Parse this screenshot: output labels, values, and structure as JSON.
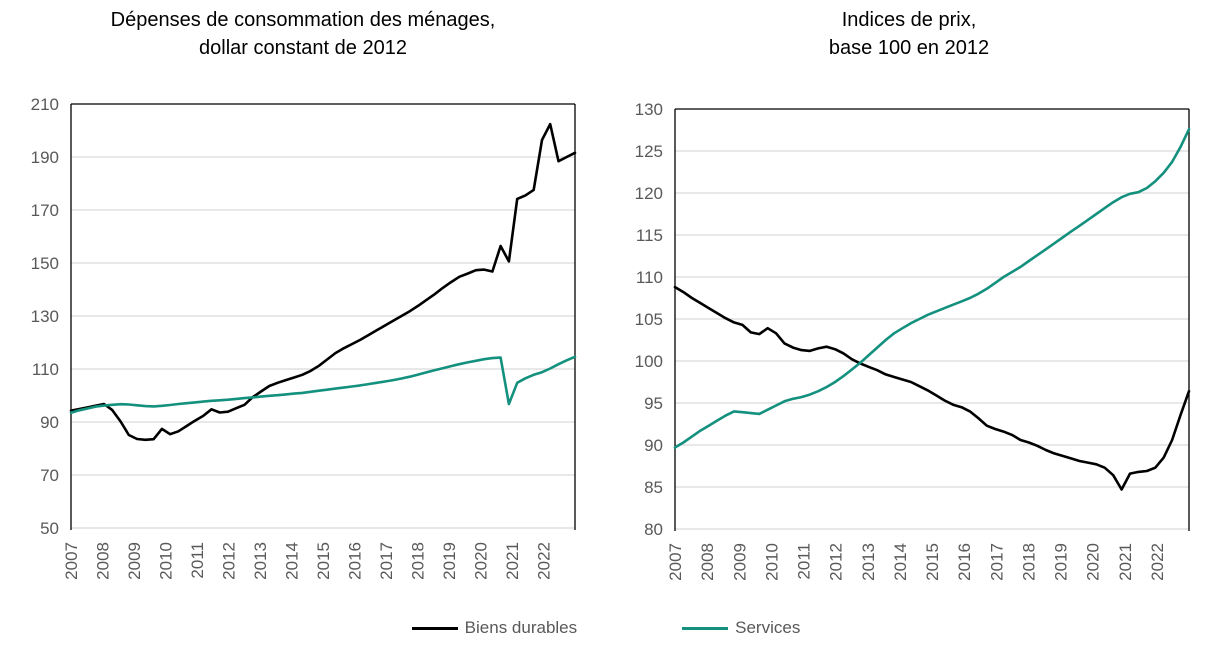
{
  "style": {
    "background": "#ffffff",
    "grid_color": "#d9d9d9",
    "border_color": "#000000",
    "axis_text_color": "#595959",
    "title_color": "#000000",
    "durables_color": "#000000",
    "services_color": "#14917e"
  },
  "legend": {
    "position": "bottom-center",
    "items": [
      {
        "label": "Biens durables",
        "color": "#000000"
      },
      {
        "label": "Services",
        "color": "#14917e"
      }
    ]
  },
  "chart_data": [
    {
      "type": "line",
      "title_lines": [
        "Dépenses de consommation des ménages,",
        "dollar constant de 2012"
      ],
      "x_tick_labels": [
        "2007",
        "2008",
        "2009",
        "2010",
        "2011",
        "2012",
        "2013",
        "2014",
        "2015",
        "2016",
        "2017",
        "2018",
        "2019",
        "2020",
        "2021",
        "2022"
      ],
      "x_frequency": "quarterly",
      "ylim": [
        50,
        210
      ],
      "y_tick_step": 20,
      "grid": true,
      "series": [
        {
          "name": "Biens durables",
          "color": "#000000",
          "values": [
            94.3,
            94.9,
            95.5,
            96.2,
            96.8,
            94.5,
            90.2,
            85.1,
            83.6,
            83.3,
            83.5,
            87.4,
            85.4,
            86.5,
            88.5,
            90.5,
            92.3,
            94.8,
            93.6,
            93.9,
            95.2,
            96.5,
            99.4,
            101.5,
            103.6,
            104.8,
            105.8,
            106.8,
            107.8,
            109.3,
            111.2,
            113.6,
            116.0,
            117.8,
            119.4,
            121.0,
            122.8,
            124.6,
            126.4,
            128.2,
            130.0,
            131.8,
            133.8,
            136.0,
            138.2,
            140.6,
            142.8,
            144.8,
            146.0,
            147.3,
            147.5,
            146.8,
            156.4,
            150.6,
            174.2,
            175.5,
            177.6,
            196.4,
            202.4,
            188.4,
            190.0,
            191.6
          ]
        },
        {
          "name": "Services",
          "color": "#14917e",
          "values": [
            93.5,
            94.4,
            95.1,
            95.8,
            96.2,
            96.5,
            96.7,
            96.6,
            96.3,
            96.0,
            95.9,
            96.1,
            96.4,
            96.8,
            97.1,
            97.4,
            97.7,
            98.0,
            98.2,
            98.4,
            98.7,
            99.0,
            99.3,
            99.6,
            99.9,
            100.1,
            100.4,
            100.7,
            101.0,
            101.4,
            101.8,
            102.2,
            102.6,
            103.0,
            103.4,
            103.8,
            104.3,
            104.8,
            105.3,
            105.8,
            106.4,
            107.1,
            107.9,
            108.7,
            109.5,
            110.3,
            111.1,
            111.8,
            112.5,
            113.1,
            113.7,
            114.1,
            114.3,
            96.8,
            104.8,
            106.5,
            107.8,
            108.8,
            110.2,
            111.8,
            113.3,
            114.6
          ]
        }
      ]
    },
    {
      "type": "line",
      "title_lines": [
        "Indices de prix,",
        "base 100 en 2012"
      ],
      "x_tick_labels": [
        "2007",
        "2008",
        "2009",
        "2010",
        "2011",
        "2012",
        "2013",
        "2014",
        "2015",
        "2016",
        "2017",
        "2018",
        "2019",
        "2020",
        "2021",
        "2022"
      ],
      "x_frequency": "quarterly",
      "ylim": [
        80,
        130
      ],
      "y_tick_step": 5,
      "grid": true,
      "series": [
        {
          "name": "Biens durables",
          "color": "#000000",
          "values": [
            108.8,
            108.2,
            107.5,
            106.9,
            106.3,
            105.7,
            105.1,
            104.6,
            104.3,
            103.4,
            103.2,
            103.9,
            103.3,
            102.1,
            101.6,
            101.3,
            101.2,
            101.5,
            101.7,
            101.4,
            100.9,
            100.2,
            99.7,
            99.3,
            98.9,
            98.4,
            98.1,
            97.8,
            97.5,
            97.0,
            96.5,
            95.9,
            95.3,
            94.8,
            94.5,
            94.0,
            93.2,
            92.3,
            91.9,
            91.6,
            91.2,
            90.6,
            90.3,
            89.9,
            89.4,
            89.0,
            88.7,
            88.4,
            88.1,
            87.9,
            87.7,
            87.3,
            86.4,
            84.7,
            86.6,
            86.8,
            86.9,
            87.3,
            88.5,
            90.6,
            93.6,
            96.4
          ]
        },
        {
          "name": "Services",
          "color": "#14917e",
          "values": [
            89.7,
            90.3,
            91.0,
            91.7,
            92.3,
            92.9,
            93.5,
            94.0,
            93.9,
            93.8,
            93.7,
            94.2,
            94.7,
            95.2,
            95.5,
            95.7,
            96.0,
            96.4,
            96.9,
            97.5,
            98.2,
            99.0,
            99.8,
            100.7,
            101.6,
            102.5,
            103.3,
            103.9,
            104.5,
            105.0,
            105.5,
            105.9,
            106.3,
            106.7,
            107.1,
            107.5,
            108.0,
            108.6,
            109.3,
            110.0,
            110.6,
            111.2,
            111.9,
            112.6,
            113.3,
            114.0,
            114.7,
            115.4,
            116.1,
            116.8,
            117.5,
            118.2,
            118.9,
            119.5,
            119.9,
            120.1,
            120.6,
            121.4,
            122.4,
            123.7,
            125.5,
            127.6
          ]
        }
      ]
    }
  ]
}
